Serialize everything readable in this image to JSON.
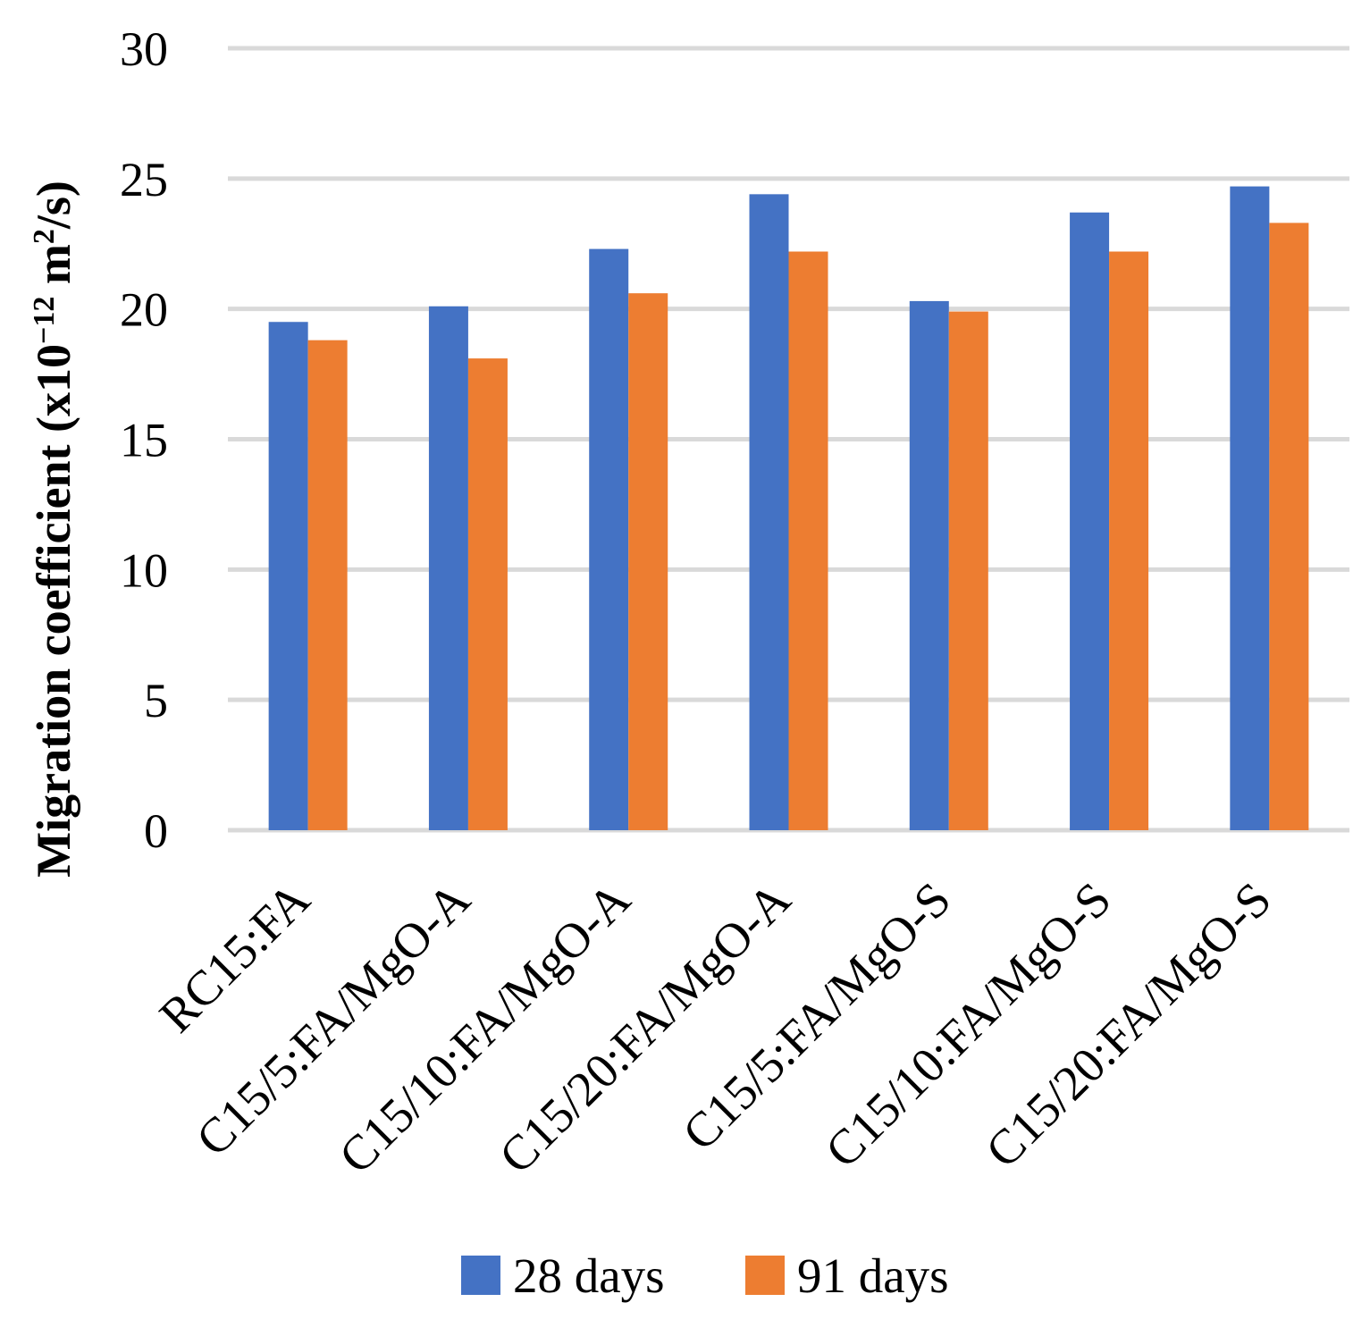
{
  "chart_data": {
    "type": "bar",
    "title": "",
    "xlabel": "",
    "ylabel": "Migration coefficient (x10",
    "ylabel_exponent": "−12",
    "ylabel_unit": " m",
    "ylabel_unit_exponent": "2",
    "ylabel_tail": "/s)",
    "ylim": [
      0,
      30
    ],
    "yticks": [
      "0",
      "5",
      "10",
      "15",
      "20",
      "25",
      "30"
    ],
    "grid": true,
    "legend_position": "bottom",
    "categories": [
      "RC15:FA",
      "C15/5:FA/MgO-A",
      "C15/10:FA/MgO-A",
      "C15/20:FA/MgO-A",
      "C15/5:FA/MgO-S",
      "C15/10:FA/MgO-S",
      "C15/20:FA/MgO-S"
    ],
    "series": [
      {
        "name": "28 days",
        "color": "#4472C4",
        "values": [
          19.5,
          20.1,
          22.3,
          24.4,
          20.3,
          23.7,
          24.7
        ]
      },
      {
        "name": "91 days",
        "color": "#ED7D31",
        "values": [
          18.8,
          18.1,
          20.6,
          22.2,
          19.9,
          22.2,
          23.3
        ]
      }
    ]
  }
}
